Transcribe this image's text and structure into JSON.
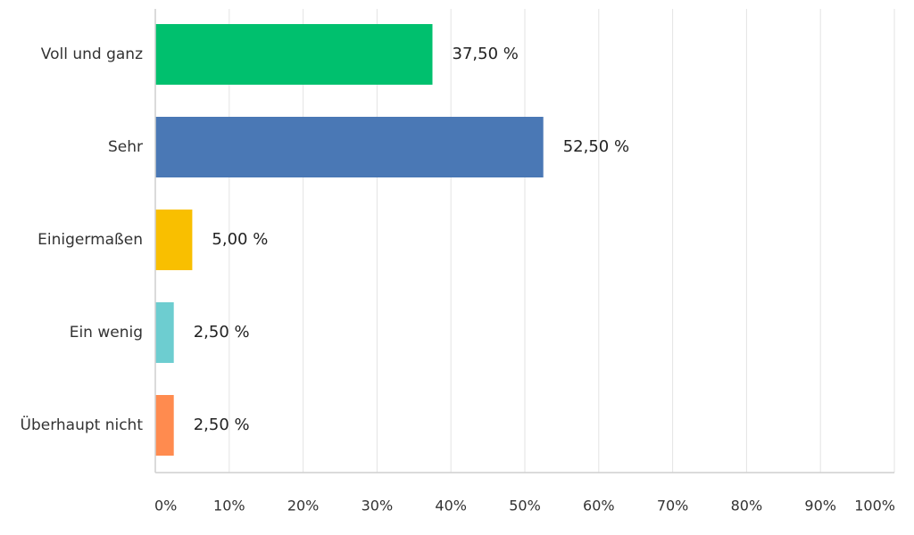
{
  "chart_data": {
    "type": "bar",
    "orientation": "horizontal",
    "title": "",
    "xlabel": "",
    "ylabel": "",
    "categories": [
      "Voll und ganz",
      "Sehr",
      "Einigermaßen",
      "Ein wenig",
      "Überhaupt nicht"
    ],
    "values": [
      37.5,
      52.5,
      5.0,
      2.5,
      2.5
    ],
    "value_labels": [
      "37,50 %",
      "52,50 %",
      "5,00 %",
      "2,50 %",
      "2,50 %"
    ],
    "colors": [
      "#00c06e",
      "#4a78b5",
      "#f9bf00",
      "#6dcdd0",
      "#ff8b4f"
    ],
    "xlim": [
      0,
      100
    ],
    "x_ticks": [
      0,
      10,
      20,
      30,
      40,
      50,
      60,
      70,
      80,
      90,
      100
    ],
    "x_tick_labels": [
      "0%",
      "10%",
      "20%",
      "30%",
      "40%",
      "50%",
      "60%",
      "70%",
      "80%",
      "90%",
      "100%"
    ],
    "grid": true,
    "legend": "none"
  }
}
